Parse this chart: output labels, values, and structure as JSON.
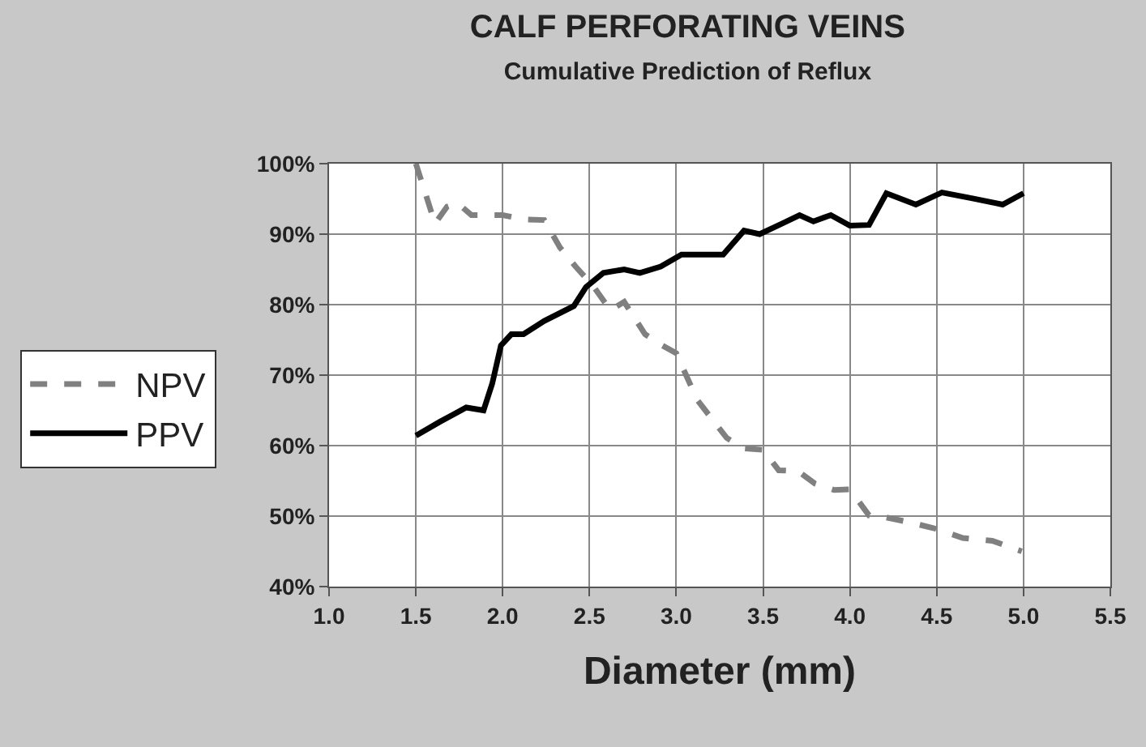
{
  "chart_data": {
    "type": "line",
    "title": "CALF PERFORATING VEINS",
    "subtitle": "Cumulative Prediction of Reflux",
    "xlabel": "Diameter (mm)",
    "series": [
      {
        "name": "NPV",
        "color": "#808080",
        "line_style": "dashed",
        "x": [
          1.5,
          1.56,
          1.61,
          1.68,
          1.74,
          1.82,
          2.0,
          2.12,
          2.24,
          2.33,
          2.42,
          2.52,
          2.62,
          2.7,
          2.82,
          2.92,
          3.0,
          3.12,
          3.29,
          3.39,
          3.5,
          3.59,
          3.7,
          3.8,
          3.91,
          4.0,
          4.11,
          4.21,
          4.33,
          4.48,
          4.65,
          4.82,
          4.99
        ],
        "values": [
          100,
          95.4,
          91.5,
          93.9,
          94.4,
          92.7,
          92.7,
          92.1,
          92,
          88.1,
          85.4,
          82.7,
          79.2,
          80.4,
          75.8,
          74.2,
          73.1,
          66.5,
          61.1,
          59.6,
          59.4,
          56.5,
          56.4,
          54.6,
          53.7,
          53.8,
          50.1,
          49.8,
          49.2,
          48.3,
          46.9,
          46.5,
          45
        ]
      },
      {
        "name": "PPV",
        "color": "#000000",
        "line_style": "solid",
        "x": [
          1.5,
          1.64,
          1.79,
          1.89,
          1.94,
          1.99,
          2.05,
          2.12,
          2.24,
          2.41,
          2.48,
          2.58,
          2.7,
          2.79,
          2.91,
          3.03,
          3.27,
          3.39,
          3.48,
          3.61,
          3.71,
          3.79,
          3.89,
          4.0,
          4.11,
          4.21,
          4.38,
          4.53,
          4.7,
          4.88,
          5.0
        ],
        "values": [
          61.4,
          63.4,
          65.4,
          65,
          68.8,
          74.2,
          75.8,
          75.8,
          77.7,
          79.8,
          82.5,
          84.5,
          85,
          84.5,
          85.4,
          87.1,
          87.1,
          90.5,
          90,
          91.5,
          92.7,
          91.8,
          92.7,
          91.2,
          91.3,
          95.8,
          94.2,
          95.9,
          95.1,
          94.2,
          95.8
        ]
      }
    ],
    "xlim": [
      1.0,
      5.5
    ],
    "xticks": [
      {
        "value": 1.0,
        "label": "1.0"
      },
      {
        "value": 1.5,
        "label": "1.5"
      },
      {
        "value": 2.0,
        "label": "2.0"
      },
      {
        "value": 2.5,
        "label": "2.5"
      },
      {
        "value": 3.0,
        "label": "3.0"
      },
      {
        "value": 3.5,
        "label": "3.5"
      },
      {
        "value": 4.0,
        "label": "4.0"
      },
      {
        "value": 4.5,
        "label": "4.5"
      },
      {
        "value": 5.0,
        "label": "5.0"
      },
      {
        "value": 5.5,
        "label": "5.5"
      }
    ],
    "ylim": [
      40,
      100
    ],
    "yticks": [
      {
        "value": 40,
        "label": "40%"
      },
      {
        "value": 50,
        "label": "50%"
      },
      {
        "value": 60,
        "label": "60%"
      },
      {
        "value": 70,
        "label": "70%"
      },
      {
        "value": 80,
        "label": "80%"
      },
      {
        "value": 90,
        "label": "90%"
      },
      {
        "value": 100,
        "label": "100%"
      }
    ],
    "grid": true,
    "legend": "left",
    "marker": "none"
  }
}
